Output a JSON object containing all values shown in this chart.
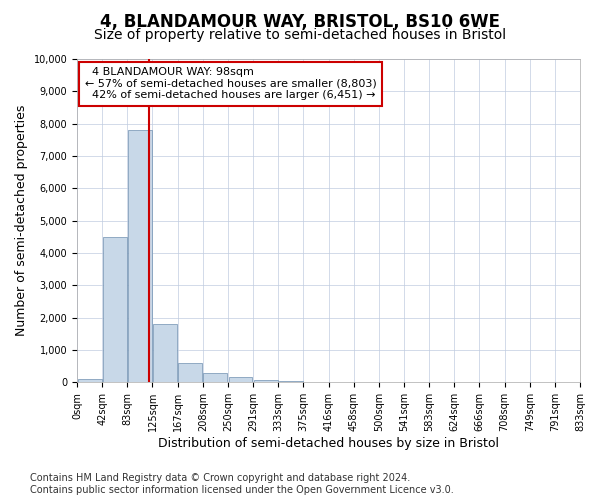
{
  "title": "4, BLANDAMOUR WAY, BRISTOL, BS10 6WE",
  "subtitle": "Size of property relative to semi-detached houses in Bristol",
  "xlabel": "Distribution of semi-detached houses by size in Bristol",
  "ylabel": "Number of semi-detached properties",
  "bin_labels": [
    "0sqm",
    "42sqm",
    "83sqm",
    "125sqm",
    "167sqm",
    "208sqm",
    "250sqm",
    "291sqm",
    "333sqm",
    "375sqm",
    "416sqm",
    "458sqm",
    "500sqm",
    "541sqm",
    "583sqm",
    "624sqm",
    "666sqm",
    "708sqm",
    "749sqm",
    "791sqm",
    "833sqm"
  ],
  "bar_heights": [
    100,
    4500,
    7800,
    1800,
    600,
    300,
    150,
    80,
    50,
    5,
    3,
    2,
    1,
    0,
    0,
    0,
    0,
    0,
    0,
    0
  ],
  "bar_color": "#c8d8e8",
  "bar_edge_color": "#7090b0",
  "property_size": 98,
  "property_label": "4 BLANDAMOUR WAY: 98sqm",
  "pct_smaller": 57,
  "pct_smaller_count": "8,803",
  "pct_larger": 42,
  "pct_larger_count": "6,451",
  "vline_color": "#cc0000",
  "annotation_box_color": "#cc0000",
  "ylim": [
    0,
    10000
  ],
  "yticks": [
    0,
    1000,
    2000,
    3000,
    4000,
    5000,
    6000,
    7000,
    8000,
    9000,
    10000
  ],
  "footer_line1": "Contains HM Land Registry data © Crown copyright and database right 2024.",
  "footer_line2": "Contains public sector information licensed under the Open Government Licence v3.0.",
  "bg_color": "#ffffff",
  "grid_color": "#c0cce0",
  "title_fontsize": 12,
  "subtitle_fontsize": 10,
  "axis_label_fontsize": 9,
  "tick_fontsize": 7,
  "footer_fontsize": 7
}
